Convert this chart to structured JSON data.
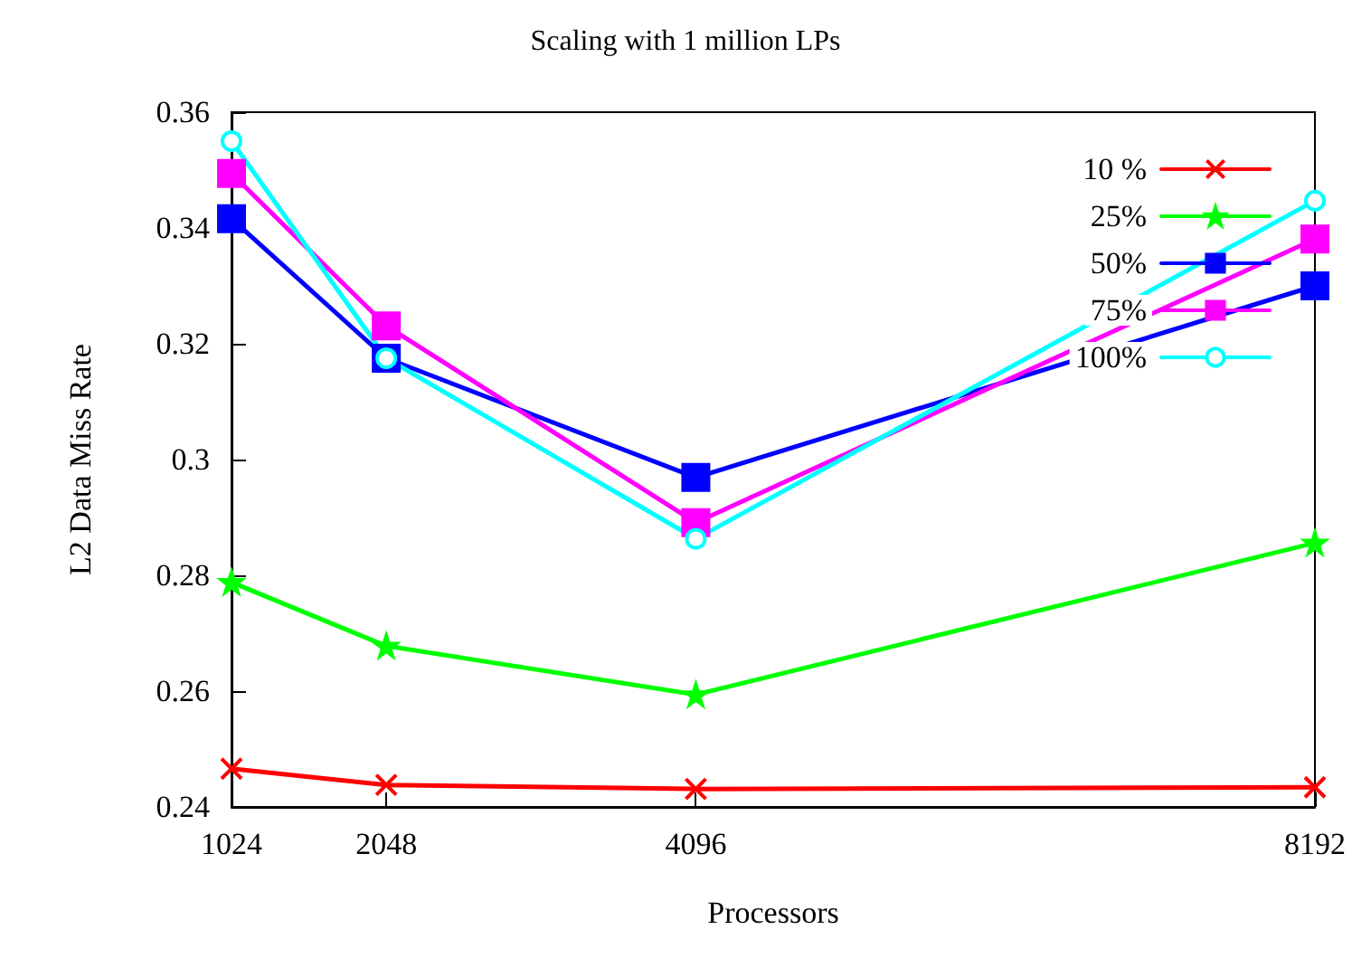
{
  "chart_data": {
    "type": "line",
    "title": "Scaling with 1 million LPs",
    "xlabel": "Processors",
    "ylabel": "L2 Data Miss Rate",
    "x": [
      1024,
      2048,
      4096,
      8192
    ],
    "xlim": [
      1024,
      8192
    ],
    "xticks": [
      1024,
      2048,
      4096,
      8192
    ],
    "ylim": [
      0.24,
      0.36
    ],
    "yticks": [
      0.24,
      0.26,
      0.28,
      0.3,
      0.32,
      0.34,
      0.36
    ],
    "grid": false,
    "legend": "top right",
    "series": [
      {
        "name": "10 %",
        "color": "#ff0000",
        "marker": "cross",
        "values": [
          0.2466,
          0.2438,
          0.2431,
          0.2434
        ]
      },
      {
        "name": "25%",
        "color": "#00ff00",
        "marker": "star",
        "values": [
          0.2788,
          0.2678,
          0.2594,
          0.2856
        ]
      },
      {
        "name": "50%",
        "color": "#0000ff",
        "marker": "square",
        "values": [
          0.3416,
          0.3175,
          0.2969,
          0.33
        ]
      },
      {
        "name": "75%",
        "color": "#ff00ff",
        "marker": "square",
        "values": [
          0.3494,
          0.3231,
          0.2891,
          0.3381
        ]
      },
      {
        "name": "100%",
        "color": "#00ffff",
        "marker": "circle",
        "values": [
          0.355,
          0.3175,
          0.2863,
          0.3447
        ]
      }
    ]
  }
}
